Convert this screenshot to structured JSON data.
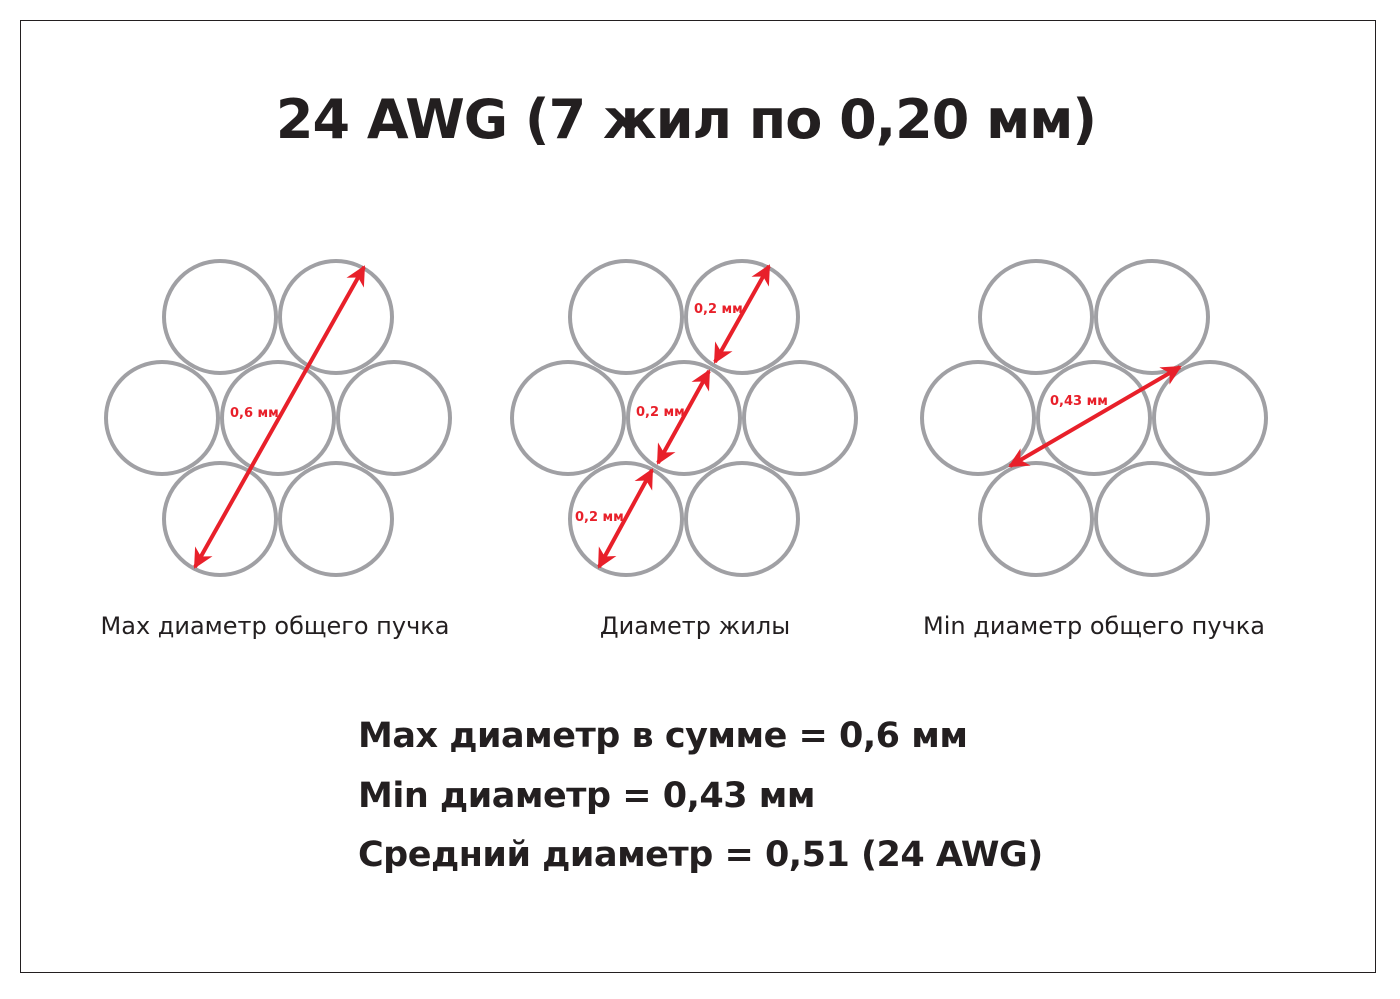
{
  "title": "24 AWG (7 жил по 0,20 мм)",
  "colors": {
    "wire": "#a0a0a4",
    "arrow": "#e8202a",
    "text": "#231f20"
  },
  "diagrams": [
    {
      "caption": "Max диаметр общего пучка",
      "labels": [
        "0,6 мм"
      ]
    },
    {
      "caption": "Диаметр жилы",
      "labels": [
        "0,2 мм",
        "0,2 мм",
        "0,2 мм"
      ]
    },
    {
      "caption": "Min диаметр общего пучка",
      "labels": [
        "0,43 мм"
      ]
    }
  ],
  "summary": [
    "Max диаметр в сумме = 0,6 мм",
    "Min диаметр = 0,43 мм",
    "Средний диаметр = 0,51 (24 AWG)"
  ]
}
